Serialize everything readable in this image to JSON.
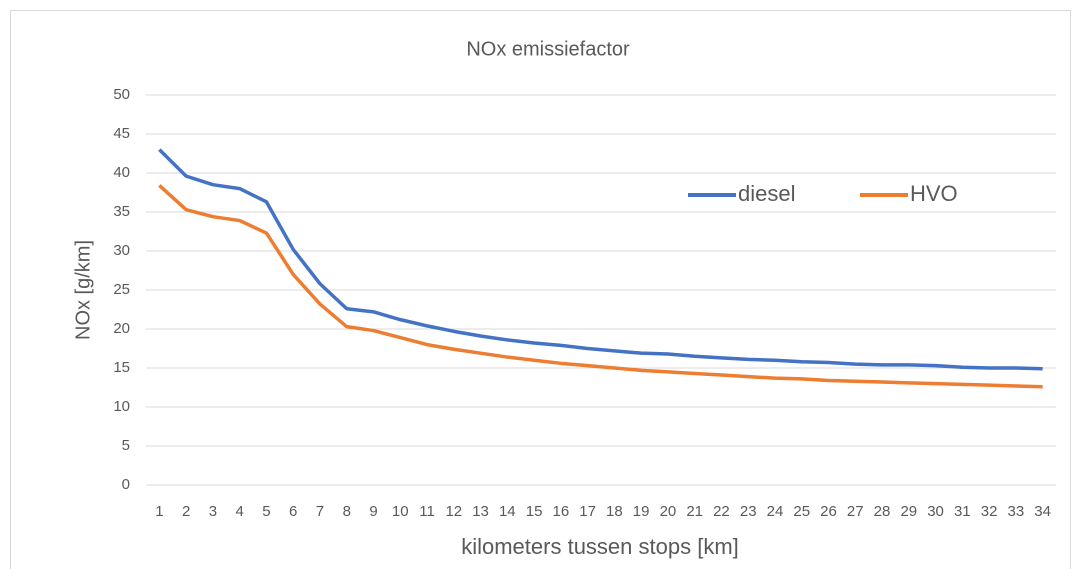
{
  "chart_data": {
    "type": "line",
    "title": "NOx emissiefactor",
    "x_label": "kilometers tussen stops [km]",
    "y_label": "NOx [g/km]",
    "categories": [
      1,
      2,
      3,
      4,
      5,
      6,
      7,
      8,
      9,
      10,
      11,
      12,
      13,
      14,
      15,
      16,
      17,
      18,
      19,
      20,
      21,
      22,
      23,
      24,
      25,
      26,
      27,
      28,
      29,
      30,
      31,
      32,
      33,
      34
    ],
    "series": [
      {
        "name": "diesel",
        "color": "#4472c4",
        "values": [
          43.0,
          39.6,
          38.5,
          38.0,
          36.3,
          30.2,
          25.8,
          22.6,
          22.2,
          21.2,
          20.4,
          19.7,
          19.1,
          18.6,
          18.2,
          17.9,
          17.5,
          17.2,
          16.9,
          16.8,
          16.5,
          16.3,
          16.1,
          16.0,
          15.8,
          15.7,
          15.5,
          15.4,
          15.4,
          15.3,
          15.1,
          15.0,
          15.0,
          14.9
        ]
      },
      {
        "name": "HVO",
        "color": "#ed7d31",
        "values": [
          38.4,
          35.3,
          34.4,
          33.9,
          32.3,
          27.0,
          23.2,
          20.3,
          19.8,
          18.9,
          18.0,
          17.4,
          16.9,
          16.4,
          16.0,
          15.6,
          15.3,
          15.0,
          14.7,
          14.5,
          14.3,
          14.1,
          13.9,
          13.7,
          13.6,
          13.4,
          13.3,
          13.2,
          13.1,
          13.0,
          12.9,
          12.8,
          12.7,
          12.6
        ]
      }
    ],
    "ylim": [
      0,
      50
    ],
    "yticks": [
      0,
      5,
      10,
      15,
      20,
      25,
      30,
      35,
      40,
      45,
      50
    ],
    "grid": true,
    "legend": "right"
  }
}
